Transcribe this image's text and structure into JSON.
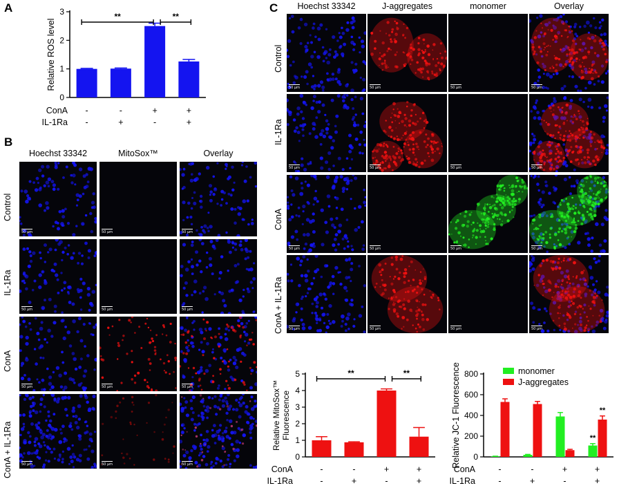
{
  "panels": {
    "A": {
      "letter": "A"
    },
    "B": {
      "letter": "B",
      "columns": [
        "Hoechst 33342",
        "MitoSox™",
        "Overlay"
      ],
      "rows": [
        "Control",
        "IL-1Ra",
        "ConA",
        "ConA + IL-1Ra"
      ]
    },
    "C": {
      "letter": "C",
      "columns": [
        "Hoechst 33342",
        "J-aggregates",
        "monomer",
        "Overlay"
      ],
      "rows": [
        "Control",
        "IL-1Ra",
        "ConA",
        "ConA + IL-1Ra"
      ]
    }
  },
  "scale_bar": "50 μm",
  "treatments": {
    "conA_label": "ConA",
    "il1ra_label": "IL-1Ra",
    "conA": [
      "-",
      "-",
      "+",
      "+"
    ],
    "il1ra": [
      "-",
      "+",
      "-",
      "+"
    ]
  },
  "significance": "**",
  "colors": {
    "blue": "#1414f0",
    "red": "#ee1111",
    "green": "#22ee22"
  },
  "chart_data": [
    {
      "id": "A",
      "type": "bar",
      "ylabel": "Relative ROS level",
      "ylim": [
        0,
        3
      ],
      "yticks": [
        0,
        1,
        2,
        3
      ],
      "categories": [
        "1",
        "2",
        "3",
        "4"
      ],
      "values": [
        1.0,
        1.01,
        2.5,
        1.26
      ],
      "errors": [
        0.02,
        0.02,
        0.1,
        0.07
      ],
      "color": "#1414f0",
      "brackets": [
        {
          "from": 0,
          "to": 2,
          "label": "**"
        },
        {
          "from": 2,
          "to": 3,
          "label": "**"
        }
      ]
    },
    {
      "id": "C-mitosox",
      "type": "bar",
      "ylabel_line1": "Relative MitoSox™",
      "ylabel_line2": "Fluorescence",
      "ylim": [
        0,
        5
      ],
      "yticks": [
        0,
        1,
        2,
        3,
        4,
        5
      ],
      "categories": [
        "1",
        "2",
        "3",
        "4"
      ],
      "values": [
        1.0,
        0.88,
        4.0,
        1.22
      ],
      "errors": [
        0.22,
        0.03,
        0.1,
        0.55
      ],
      "color": "#ee1111",
      "brackets": [
        {
          "from": 0,
          "to": 2,
          "label": "**"
        },
        {
          "from": 2,
          "to": 3,
          "label": "**"
        }
      ]
    },
    {
      "id": "C-jc1",
      "type": "bar",
      "ylabel": "Relative JC-1 Fluorescence",
      "ylim": [
        0,
        800
      ],
      "yticks": [
        0,
        200,
        400,
        600,
        800
      ],
      "categories": [
        "1",
        "2",
        "3",
        "4"
      ],
      "series": [
        {
          "name": "monomer",
          "color": "#22ee22",
          "values": [
            5,
            20,
            390,
            110
          ],
          "errors": [
            2,
            4,
            38,
            18
          ]
        },
        {
          "name": "J-aggregates",
          "color": "#ee1111",
          "values": [
            530,
            510,
            65,
            360
          ],
          "errors": [
            30,
            25,
            8,
            35
          ]
        }
      ],
      "annotations": [
        {
          "series": 0,
          "index": 3,
          "label": "**"
        },
        {
          "series": 1,
          "index": 3,
          "label": "**"
        }
      ],
      "legend": "top-left"
    }
  ]
}
